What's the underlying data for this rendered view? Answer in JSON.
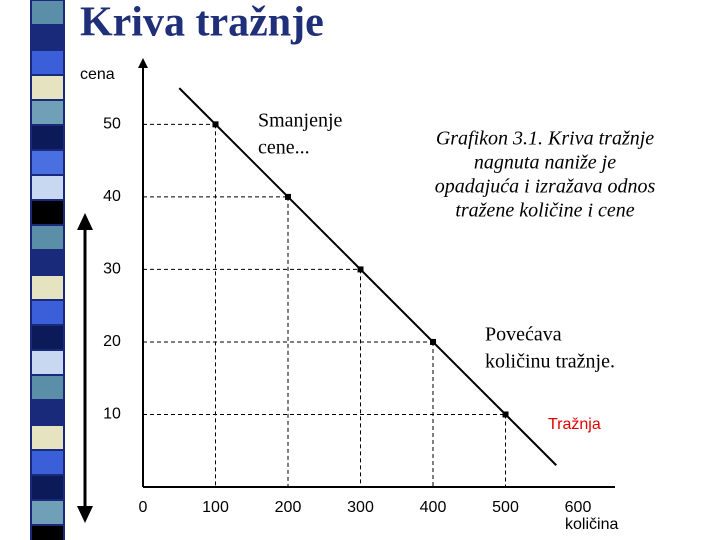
{
  "title": "Kriva tražnje",
  "chart_data": {
    "type": "line",
    "x_label": "količina",
    "y_label": "cena",
    "xlim": [
      0,
      651
    ],
    "ylim": [
      0,
      58.6
    ],
    "xticks": [
      0,
      100,
      200,
      300,
      400,
      500,
      600
    ],
    "yticks": [
      10,
      20,
      30,
      40,
      50
    ],
    "series": [
      {
        "name": "Tražnja",
        "color": "#000000",
        "x": [
          50,
          570
        ],
        "values": [
          55,
          3
        ]
      }
    ],
    "points": {
      "x": [
        100,
        200,
        300,
        400,
        500
      ],
      "values": [
        50,
        40,
        30,
        20,
        10
      ]
    },
    "annotations": {
      "decrease": [
        "Smanjenje",
        "cene..."
      ],
      "caption": [
        "Grafikon 3.1. Kriva tražnje",
        "nagnuta naniže je",
        "opadajuća i izražava odnos",
        "tražene količine i cene"
      ],
      "increase": [
        "Povećava",
        "količinu tražnje."
      ]
    }
  }
}
